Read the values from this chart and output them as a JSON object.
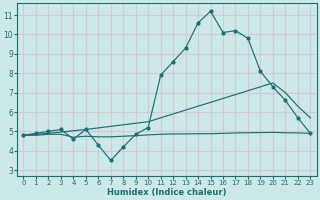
{
  "xlabel": "Humidex (Indice chaleur)",
  "bg_color": "#cce8e8",
  "grid_color": "#d4c8d4",
  "line_color": "#1a7070",
  "xlim": [
    -0.5,
    23.5
  ],
  "ylim": [
    2.7,
    11.6
  ],
  "xticks": [
    0,
    1,
    2,
    3,
    4,
    5,
    6,
    7,
    8,
    9,
    10,
    11,
    12,
    13,
    14,
    15,
    16,
    17,
    18,
    19,
    20,
    21,
    22,
    23
  ],
  "yticks": [
    3,
    4,
    5,
    6,
    7,
    8,
    9,
    10,
    11
  ],
  "curve1_x": [
    0,
    1,
    2,
    3,
    4,
    5,
    6,
    7,
    8,
    9,
    10,
    11,
    12,
    13,
    14,
    15,
    16,
    17,
    18,
    19,
    20,
    21,
    22,
    23
  ],
  "curve1_y": [
    4.8,
    4.9,
    5.0,
    5.1,
    4.6,
    5.1,
    4.3,
    3.5,
    4.2,
    4.85,
    5.2,
    7.9,
    8.6,
    9.3,
    10.6,
    11.2,
    10.1,
    10.2,
    9.8,
    8.1,
    7.3,
    6.6,
    5.7,
    4.9
  ],
  "curve2_x": [
    0,
    2,
    5,
    10,
    15,
    19,
    20,
    21,
    22,
    23
  ],
  "curve2_y": [
    4.8,
    4.9,
    5.1,
    5.5,
    6.5,
    7.3,
    7.5,
    7.0,
    6.3,
    5.7
  ],
  "curve3_x": [
    0,
    1,
    2,
    3,
    4,
    5,
    6,
    7,
    8,
    9,
    10,
    11,
    12,
    13,
    14,
    15,
    16,
    17,
    18,
    19,
    20,
    21,
    22,
    23
  ],
  "curve3_y": [
    4.8,
    4.8,
    4.85,
    4.85,
    4.7,
    4.75,
    4.72,
    4.72,
    4.75,
    4.78,
    4.82,
    4.85,
    4.87,
    4.87,
    4.88,
    4.88,
    4.9,
    4.92,
    4.93,
    4.94,
    4.95,
    4.93,
    4.92,
    4.9
  ]
}
